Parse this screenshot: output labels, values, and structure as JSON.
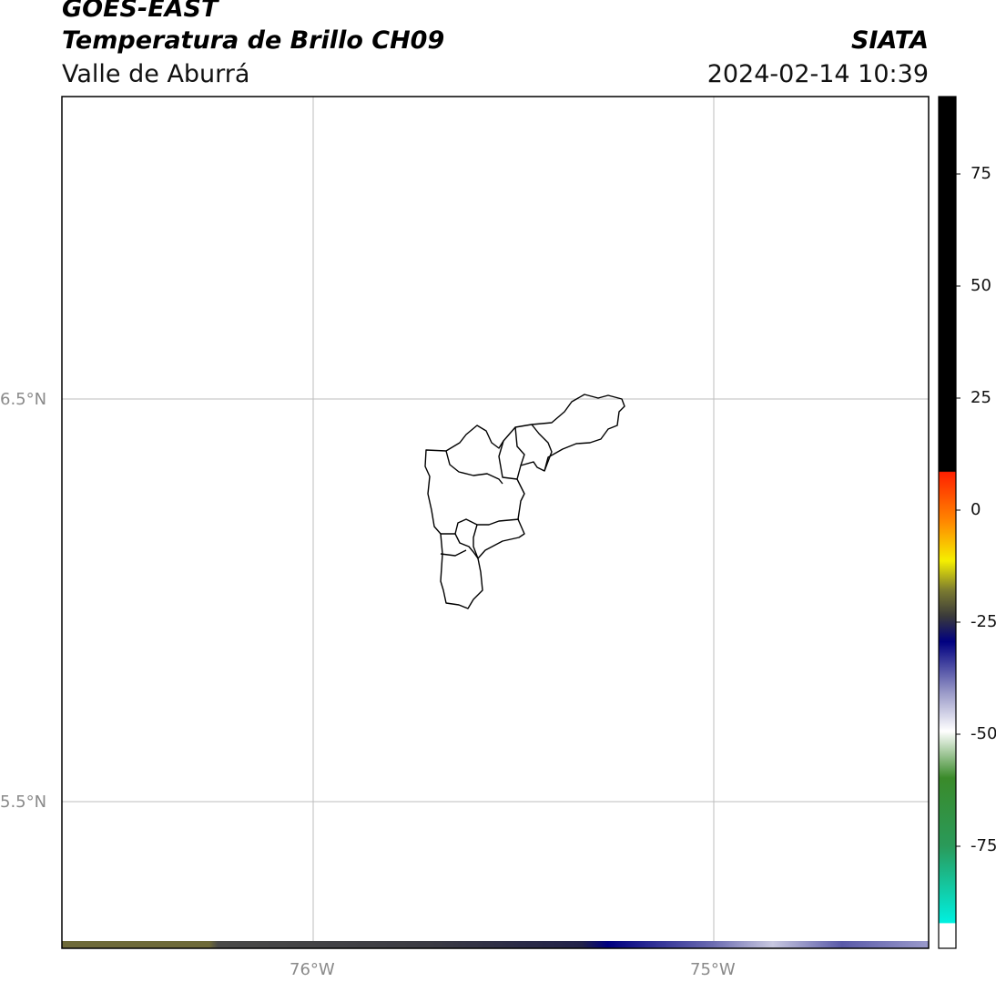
{
  "header": {
    "satellite": "GOES-EAST",
    "product": "Temperatura de Brillo CH09",
    "brand": "SIATA",
    "region": "Valle de Aburrá",
    "datetime": "2024-02-14 10:39"
  },
  "map": {
    "lat_labels": [
      "6.5°N",
      "5.5°N"
    ],
    "lon_labels": [
      "76°W",
      "75°W"
    ],
    "grid": true,
    "boundary_color": "#000000"
  },
  "colorbar": {
    "tick_labels": [
      "75",
      "50",
      "25",
      "0",
      "-25",
      "-50",
      "-75"
    ],
    "colors": {
      "black": "#000000",
      "red": "#ff2000",
      "orange": "#ff8a00",
      "yellow": "#f5ef00",
      "olive": "#7a7a30",
      "navy": "#000080",
      "white": "#ffffff",
      "green": "#3a8a2a",
      "cyan": "#00f0e0"
    }
  }
}
